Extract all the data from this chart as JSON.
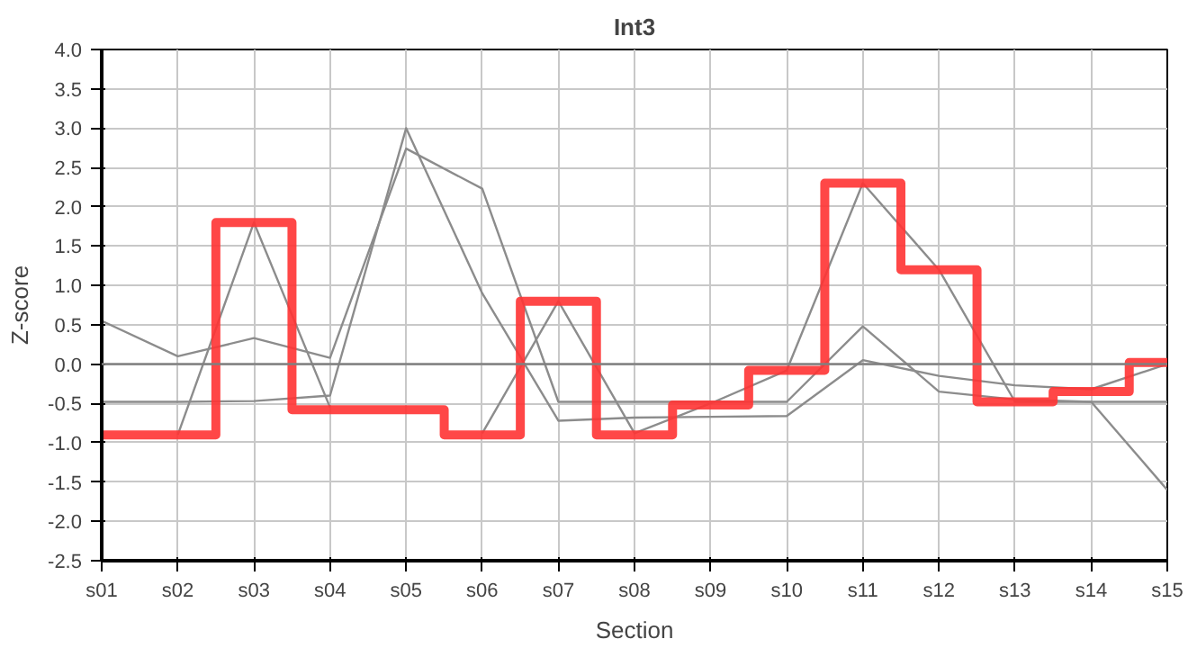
{
  "chart_data": {
    "type": "line",
    "title": "Int3",
    "xlabel": "Section",
    "ylabel": "Z-score",
    "categories": [
      "s01",
      "s02",
      "s03",
      "s04",
      "s05",
      "s06",
      "s07",
      "s08",
      "s09",
      "s10",
      "s11",
      "s12",
      "s13",
      "s14",
      "s15"
    ],
    "series": [
      {
        "color": "#8c8c8c",
        "values": [
          0.55,
          0.1,
          0.33,
          0.08,
          2.74,
          2.23,
          -0.48,
          -0.48,
          -0.48,
          -0.48,
          0.48,
          -0.35,
          -0.45,
          -0.48,
          -0.48
        ]
      },
      {
        "color": "#8c8c8c",
        "values": [
          -0.48,
          -0.48,
          -0.47,
          -0.4,
          3.0,
          0.9,
          -0.72,
          -0.68,
          -0.67,
          -0.66,
          0.05,
          -0.15,
          -0.27,
          -0.32,
          0.0
        ]
      },
      {
        "color": "#8c8c8c",
        "values": [
          null,
          -0.9,
          1.8,
          -0.55,
          null,
          -0.88,
          0.8,
          -0.88,
          -0.5,
          -0.08,
          2.3,
          1.2,
          -0.48,
          -0.48,
          -1.6
        ]
      },
      {
        "type": "step",
        "color": "#ff3333",
        "values": [
          -0.9,
          -0.9,
          1.8,
          -0.58,
          -0.58,
          -0.9,
          0.8,
          -0.9,
          -0.52,
          -0.08,
          2.3,
          1.2,
          -0.48,
          -0.35,
          0.02
        ]
      }
    ],
    "ylim": [
      -2.5,
      4.0
    ],
    "yticks": [
      {
        "value": -2.5,
        "label": "-2.5"
      },
      {
        "value": -2.0,
        "label": "-2.0"
      },
      {
        "value": -1.5,
        "label": "-1.5"
      },
      {
        "value": -1.0,
        "label": "-1.0"
      },
      {
        "value": -0.5,
        "label": "-0.5"
      },
      {
        "value": 0.0,
        "label": "0.0"
      },
      {
        "value": 0.5,
        "label": "0.5"
      },
      {
        "value": 1.0,
        "label": "1.0"
      },
      {
        "value": 1.5,
        "label": "1.5"
      },
      {
        "value": 2.0,
        "label": "2.0"
      },
      {
        "value": 2.5,
        "label": "2.5"
      },
      {
        "value": 3.0,
        "label": "3.0"
      },
      {
        "value": 3.5,
        "label": "3.5"
      },
      {
        "value": 4.0,
        "label": "4.0"
      }
    ],
    "ref_lines": [
      {
        "axis": "y",
        "value": 0.0,
        "color": "#808080"
      }
    ],
    "grid": true
  }
}
